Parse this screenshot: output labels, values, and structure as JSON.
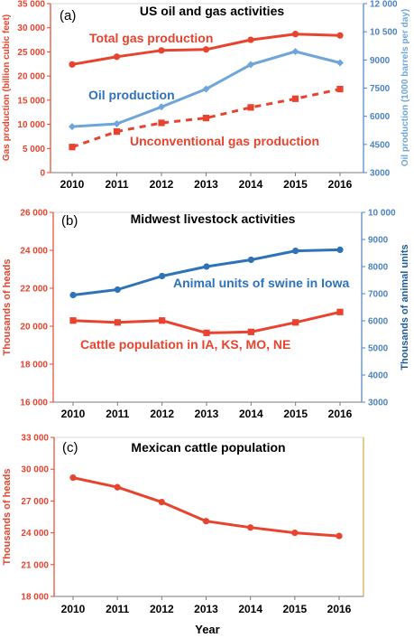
{
  "xlabel": "Year",
  "colors": {
    "red": "#e8432e",
    "blue_light": "#6fa5d9",
    "blue_dark": "#2e72b8",
    "axis_red": "#e8432e",
    "axis_blue": "#4d82c0",
    "axis_orange": "#d9a44a"
  },
  "chart_data": [
    {
      "type": "line",
      "panel_label": "(a)",
      "title": "US oil and gas activities",
      "x": [
        2010,
        2011,
        2012,
        2013,
        2014,
        2015,
        2016
      ],
      "ylabel": "Gas production (billion cubic feet)",
      "ylim": [
        0,
        35000
      ],
      "yticks": [
        "0",
        "5 000",
        "10 000",
        "15 000",
        "20 000",
        "25 000",
        "30 000",
        "35 000"
      ],
      "y2label": "Oil production (1000 barrels per day)",
      "y2lim": [
        3000,
        12000
      ],
      "y2ticks": [
        "3000",
        "4500",
        "6000",
        "7500",
        "9000",
        "10 500",
        "12 000"
      ],
      "series": [
        {
          "name": "Total gas production",
          "axis": "left",
          "color": "#e8432e",
          "marker": "circle",
          "style": "solid",
          "values": [
            22400,
            24000,
            25300,
            25500,
            27500,
            28700,
            28400
          ]
        },
        {
          "name": "Oil production",
          "axis": "right",
          "color": "#6fa5d9",
          "marker": "diamond",
          "style": "solid",
          "values": [
            5450,
            5600,
            6500,
            7450,
            8750,
            9450,
            8850
          ]
        },
        {
          "name": "Unconventional gas production",
          "axis": "left",
          "color": "#e8432e",
          "marker": "square",
          "style": "dashed",
          "values": [
            5300,
            8500,
            10300,
            11300,
            13500,
            15300,
            17300
          ]
        }
      ]
    },
    {
      "type": "line",
      "panel_label": "(b)",
      "title": "Midwest livestock activities",
      "x": [
        2010,
        2011,
        2012,
        2013,
        2014,
        2015,
        2016
      ],
      "ylabel": "Thousands of heads",
      "ylim": [
        16000,
        26000
      ],
      "yticks": [
        "16 000",
        "18 000",
        "20 000",
        "22 000",
        "24 000",
        "26 000"
      ],
      "y2label": "Thousands of animal units",
      "y2lim": [
        3000,
        10000
      ],
      "y2ticks": [
        "3000",
        "4000",
        "5000",
        "6000",
        "7000",
        "8000",
        "9000",
        "10 000"
      ],
      "series": [
        {
          "name": "Animal units of swine in Iowa",
          "axis": "right",
          "color": "#2e72b8",
          "marker": "circle",
          "style": "solid",
          "values": [
            6950,
            7150,
            7650,
            8000,
            8250,
            8580,
            8620
          ]
        },
        {
          "name": "Cattle population in IA, KS, MO, NE",
          "axis": "left",
          "color": "#e8432e",
          "marker": "square",
          "style": "solid",
          "values": [
            20300,
            20200,
            20300,
            19650,
            19700,
            20200,
            20750
          ]
        }
      ]
    },
    {
      "type": "line",
      "panel_label": "(c)",
      "title": "Mexican cattle population",
      "x": [
        2010,
        2011,
        2012,
        2013,
        2014,
        2015,
        2016
      ],
      "ylabel": "Thousands of heads",
      "ylim": [
        18000,
        33000
      ],
      "yticks": [
        "18 000",
        "21 000",
        "24 000",
        "27 000",
        "30 000",
        "33 000"
      ],
      "series": [
        {
          "name": "",
          "axis": "left",
          "color": "#e8432e",
          "marker": "circle",
          "style": "solid",
          "values": [
            29200,
            28300,
            26900,
            25100,
            24500,
            24000,
            23700
          ]
        }
      ]
    }
  ]
}
